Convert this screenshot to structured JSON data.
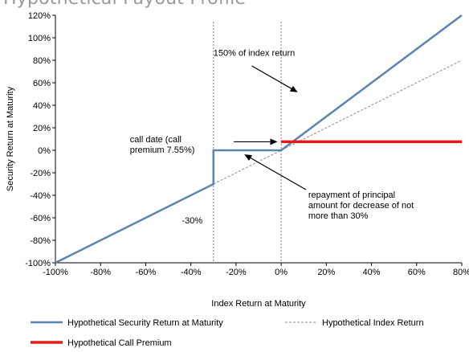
{
  "chart_data": {
    "type": "line",
    "title": "Hypothetical Payout Profile",
    "xlabel": "Index Return at Maturity",
    "ylabel": "Security Return at Maturity",
    "xlim": [
      -100,
      80
    ],
    "ylim": [
      -100,
      120
    ],
    "x_tick_labels": [
      "-100%",
      "-80%",
      "-60%",
      "-40%",
      "-20%",
      "0%",
      "20%",
      "40%",
      "60%",
      "80%"
    ],
    "x_tick_values": [
      -100,
      -80,
      -60,
      -40,
      -20,
      0,
      20,
      40,
      60,
      80
    ],
    "y_tick_labels": [
      "-100%",
      "-80%",
      "-60%",
      "-40%",
      "-20%",
      "0%",
      "20%",
      "40%",
      "60%",
      "80%",
      "100%",
      "120%"
    ],
    "y_tick_values": [
      -100,
      -80,
      -60,
      -40,
      -20,
      0,
      20,
      40,
      60,
      80,
      100,
      120
    ],
    "grid": false,
    "legend_position": "bottom",
    "series": [
      {
        "name": "Hypothetical Security Return at Maturity",
        "color": "#5b84b1",
        "style": "solid",
        "points": [
          [
            -100,
            -100
          ],
          [
            -30,
            -30
          ],
          [
            -30,
            0
          ],
          [
            0,
            0
          ],
          [
            80,
            120
          ]
        ]
      },
      {
        "name": "Hypothetical Index Return",
        "color": "#8c8c8c",
        "style": "dashed",
        "points": [
          [
            -30,
            -30
          ],
          [
            80,
            80
          ]
        ]
      },
      {
        "name": "Hypothetical Call Premium",
        "color": "#e31b1b",
        "style": "solid",
        "points": [
          [
            0,
            7.55
          ],
          [
            80,
            7.55
          ]
        ]
      }
    ],
    "reference_lines": [
      {
        "axis": "x",
        "value": -30
      },
      {
        "axis": "x",
        "value": 0
      }
    ],
    "annotations": [
      {
        "id": "index150",
        "lines": [
          "150% of index return"
        ]
      },
      {
        "id": "calldate",
        "lines": [
          "call date (call",
          "premium 7.55%)"
        ]
      },
      {
        "id": "repayment",
        "lines": [
          "repayment of principal",
          "amount for decrease of not",
          "more than 30%"
        ]
      },
      {
        "id": "neg30",
        "lines": [
          "-30%"
        ]
      }
    ]
  }
}
